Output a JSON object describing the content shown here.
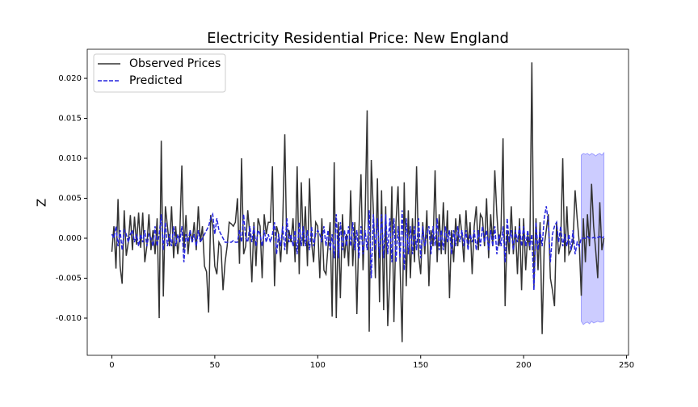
{
  "chart_data": {
    "type": "line",
    "title": "Electricity Residential Price: New England",
    "y_label": "Z",
    "x": [
      0,
      1,
      2,
      3,
      4,
      5,
      6,
      7,
      8,
      9,
      10,
      11,
      12,
      13,
      14,
      15,
      16,
      17,
      18,
      19,
      20,
      21,
      22,
      23,
      24,
      25,
      26,
      27,
      28,
      29,
      30,
      31,
      32,
      33,
      34,
      35,
      36,
      37,
      38,
      39,
      40,
      41,
      42,
      43,
      44,
      45,
      46,
      47,
      48,
      49,
      50,
      51,
      52,
      53,
      54,
      55,
      56,
      57,
      58,
      59,
      60,
      61,
      62,
      63,
      64,
      65,
      66,
      67,
      68,
      69,
      70,
      71,
      72,
      73,
      74,
      75,
      76,
      77,
      78,
      79,
      80,
      81,
      82,
      83,
      84,
      85,
      86,
      87,
      88,
      89,
      90,
      91,
      92,
      93,
      94,
      95,
      96,
      97,
      98,
      99,
      100,
      101,
      102,
      103,
      104,
      105,
      106,
      107,
      108,
      109,
      110,
      111,
      112,
      113,
      114,
      115,
      116,
      117,
      118,
      119,
      120,
      121,
      122,
      123,
      124,
      125,
      126,
      127,
      128,
      129,
      130,
      131,
      132,
      133,
      134,
      135,
      136,
      137,
      138,
      139,
      140,
      141,
      142,
      143,
      144,
      145,
      146,
      147,
      148,
      149,
      150,
      151,
      152,
      153,
      154,
      155,
      156,
      157,
      158,
      159,
      160,
      161,
      162,
      163,
      164,
      165,
      166,
      167,
      168,
      169,
      170,
      171,
      172,
      173,
      174,
      175,
      176,
      177,
      178,
      179,
      180,
      181,
      182,
      183,
      184,
      185,
      186,
      187,
      188,
      189,
      190,
      191,
      192,
      193,
      194,
      195,
      196,
      197,
      198,
      199,
      200,
      201,
      202,
      203,
      204,
      205,
      206,
      207,
      208,
      209,
      210,
      211,
      212,
      213,
      214,
      215,
      216,
      217,
      218,
      219,
      220,
      221,
      222,
      223,
      224,
      225,
      226,
      227,
      228,
      229,
      230,
      231,
      232,
      233,
      234,
      235,
      236,
      237,
      238,
      239
    ],
    "series": [
      {
        "name": "Observed Prices",
        "color": "#333333",
        "dash": false,
        "values": [
          -0.0017,
          0.0015,
          -0.0038,
          0.0049,
          -0.0035,
          -0.0057,
          0.0035,
          -0.0022,
          -0.0005,
          0.0029,
          -0.0015,
          0.0027,
          -0.0008,
          0.0032,
          -0.0012,
          0.0032,
          -0.003,
          -0.001,
          0.003,
          -0.0015,
          0.001,
          -0.002,
          0.0025,
          -0.01,
          0.0122,
          -0.0073,
          0.004,
          0.0015,
          -0.001,
          0.004,
          -0.0025,
          0.0015,
          -0.002,
          0.0005,
          0.0091,
          -0.0015,
          0.0029,
          -0.002,
          0.001,
          -0.0005,
          0.002,
          -0.0015,
          0.004,
          -0.0005,
          0.0015,
          -0.0035,
          -0.0042,
          -0.0093,
          0.0029,
          0.0015,
          -0.0035,
          -0.0045,
          -0.0005,
          -0.001,
          -0.0065,
          -0.003,
          -0.001,
          0.002,
          0.0018,
          0.0015,
          0.002,
          0.005,
          -0.0032,
          0.01,
          -0.002,
          -0.001,
          0.0035,
          0.0005,
          -0.0055,
          0.002,
          -0.0035,
          0.0025,
          0.0015,
          -0.005,
          0.003,
          0.0005,
          0.002,
          0.002,
          0.009,
          -0.006,
          0.0015,
          0.0005,
          -0.003,
          0.002,
          0.013,
          -0.002,
          0.001,
          -0.0005,
          0.0025,
          -0.003,
          0.009,
          -0.0045,
          0.007,
          -0.001,
          0.004,
          -0.0035,
          0.0075,
          -0.0005,
          -0.003,
          0.002,
          0.0015,
          -0.005,
          0.0025,
          -0.004,
          -0.0045,
          -0.001,
          0.002,
          -0.0098,
          0.0095,
          -0.01,
          0.002,
          -0.0075,
          0.003,
          -0.0025,
          0.0005,
          -0.0035,
          0.006,
          -0.0035,
          0.002,
          -0.0095,
          0.001,
          0.008,
          -0.004,
          0.0025,
          0.016,
          -0.0117,
          0.0098,
          0.0035,
          -0.005,
          0.0075,
          -0.008,
          0.006,
          -0.009,
          0.004,
          -0.011,
          -0.005,
          0.0065,
          -0.0105,
          0.002,
          0.0065,
          -0.0035,
          -0.013,
          0.007,
          -0.006,
          0.0035,
          -0.005,
          0.0025,
          -0.003,
          0.009,
          -0.002,
          -0.0045,
          0.002,
          -0.002,
          0.0035,
          -0.006,
          0.001,
          -0.001,
          0.0085,
          -0.003,
          0.003,
          -0.002,
          0.0045,
          -0.002,
          0.0035,
          -0.0075,
          0.001,
          -0.003,
          0.0025,
          -0.001,
          0.003,
          0.0005,
          -0.003,
          0.0035,
          -0.001,
          0.002,
          -0.0045,
          0.0015,
          0.004,
          -0.0015,
          0.003,
          0.0025,
          -0.001,
          0.005,
          -0.0025,
          0.003,
          -0.001,
          0.0085,
          0.003,
          -0.001,
          0.001,
          0.0125,
          -0.0085,
          0.001,
          -0.002,
          0.004,
          -0.002,
          0.0015,
          -0.0045,
          0.0025,
          -0.0065,
          0.0025,
          -0.004,
          0.0005,
          -0.0015,
          0.022,
          -0.006,
          0.0025,
          -0.004,
          0.002,
          -0.012,
          -0.001,
          0.001,
          0.003,
          -0.005,
          -0.0065,
          -0.0085,
          0.002,
          -0.002,
          -0.0005,
          0.01,
          -0.003,
          0.004,
          -0.002,
          -0.0015,
          -0.0005,
          0.006,
          0.0025,
          -0.0005,
          -0.0072,
          0.0025,
          -0.003,
          0.003,
          -0.001,
          0.0068,
          0.0015,
          -0.0015,
          -0.005,
          0.0045,
          -0.0015,
          0
        ]
      },
      {
        "name": "Predicted",
        "color": "#2424dd",
        "dash": true,
        "values": [
          0.0005,
          0,
          0.0015,
          -0.001,
          0.001,
          -0.0015,
          0.001,
          0.0005,
          -0.0005,
          0.0005,
          0.001,
          -0.0005,
          0.0005,
          -0.001,
          0.0005,
          -0.0005,
          0.001,
          -0.001,
          0.0005,
          0,
          -0.001,
          0.0015,
          -0.001,
          0.0005,
          0.003,
          -0.0015,
          0.002,
          -0.001,
          0.0005,
          -0.001,
          0.0015,
          -0.001,
          0.0005,
          -0.0005,
          0.0015,
          -0.003,
          0.0005,
          -0.0005,
          0.001,
          -0.0005,
          0.0005,
          -0.001,
          0.001,
          -0.0005,
          0,
          0.0005,
          0.001,
          0.0015,
          0.0025,
          0.003,
          0.0005,
          0.0025,
          0.001,
          0.0005,
          0,
          -0.0005,
          -0.0005,
          -0.0005,
          -0.0005,
          -0.0003,
          -0.0005,
          -0.0005,
          0.001,
          -0.0005,
          0.003,
          0,
          -0.0005,
          0.0015,
          -0.0005,
          0.0015,
          -0.001,
          0.001,
          0.0005,
          -0.001,
          0.001,
          -0.0005,
          0.0005,
          -0.0005,
          0.0005,
          0.002,
          -0.002,
          0.0005,
          -0.001,
          0.0015,
          -0.0015,
          0.0025,
          -0.0005,
          0.0005,
          -0.001,
          0.001,
          -0.002,
          0.002,
          -0.001,
          0.0015,
          -0.001,
          0.001,
          -0.0015,
          0.0015,
          -0.001,
          0.0005,
          0.001,
          0.0005,
          -0.0005,
          0.0015,
          -0.001,
          0.001,
          -0.0015,
          0.0005,
          -0.0025,
          0.003,
          -0.0025,
          0.002,
          -0.0015,
          0.001,
          -0.001,
          0.0015,
          -0.001,
          0.002,
          -0.0015,
          0.001,
          -0.0025,
          0.0015,
          -0.002,
          0.001,
          -0.0015,
          0.0035,
          -0.005,
          0.003,
          -0.0015,
          0.0025,
          -0.0025,
          0.003,
          -0.0025,
          0.003,
          -0.002,
          0.0025,
          -0.003,
          0.0025,
          -0.003,
          0.0015,
          -0.0025,
          0.0035,
          -0.004,
          0.0025,
          -0.002,
          0.0015,
          -0.002,
          0.0015,
          -0.0015,
          0.0025,
          -0.0025,
          0.0015,
          -0.001,
          0.0005,
          0.0015,
          -0.002,
          0.0015,
          -0.001,
          0.0025,
          -0.0015,
          0.001,
          -0.0015,
          0.0015,
          -0.0005,
          0.001,
          -0.002,
          0.001,
          -0.001,
          0.0015,
          -0.0005,
          0.001,
          -0.001,
          0.001,
          -0.0015,
          0.0005,
          -0.0005,
          0.001,
          -0.0015,
          0.001,
          -0.001,
          0.0015,
          -0.0005,
          0.001,
          -0.0015,
          0.001,
          -0.001,
          0.0015,
          -0.002,
          0.0005,
          -0.001,
          0.0015,
          -0.003,
          0.0025,
          -0.0005,
          0.001,
          -0.0015,
          0.001,
          -0.0005,
          0.0015,
          -0.001,
          0.0015,
          -0.001,
          0.001,
          -0.001,
          0.0005,
          -0.0065,
          0.002,
          -0.0015,
          0.001,
          -0.001,
          0.0025,
          0.004,
          0.002,
          -0.003,
          0.0005,
          0.0015,
          0.002,
          -0.0005,
          0.0015,
          -0.001,
          0.0005,
          -0.001,
          0.0005,
          -0.0015,
          0.001,
          -0.002,
          -0.0005,
          -0.001,
          0,
          0,
          0,
          0.0002,
          0,
          0,
          0.0001,
          0,
          0.0001,
          0.0002,
          0,
          0.0002
        ]
      }
    ],
    "interval": {
      "color": "#0000ff",
      "x": [
        228,
        229,
        230,
        231,
        232,
        233,
        234,
        235,
        236,
        237,
        238,
        239
      ],
      "lower": [
        -0.0104,
        -0.0108,
        -0.0106,
        -0.0105,
        -0.0107,
        -0.0104,
        -0.0106,
        -0.0105,
        -0.0104,
        -0.0105,
        -0.0105,
        -0.0104
      ],
      "upper": [
        0.0104,
        0.0106,
        0.0105,
        0.0106,
        0.0104,
        0.0106,
        0.0105,
        0.0103,
        0.0105,
        0.0106,
        0.0104,
        0.0107
      ]
    },
    "xlim": [
      -11.95,
      250.95
    ],
    "ylim": [
      -0.01465,
      0.02364
    ],
    "xticks": [
      0,
      50,
      100,
      150,
      200,
      250
    ],
    "yticks": [
      {
        "value": -0.01,
        "label": "-0.010"
      },
      -0.005,
      {
        "value": 0,
        "label": "0.000"
      },
      0.005,
      {
        "value": 0.01,
        "label": "0.010"
      },
      0.015,
      {
        "value": 0.02,
        "label": "0.020"
      }
    ],
    "grid": false,
    "legend": "upper left"
  }
}
